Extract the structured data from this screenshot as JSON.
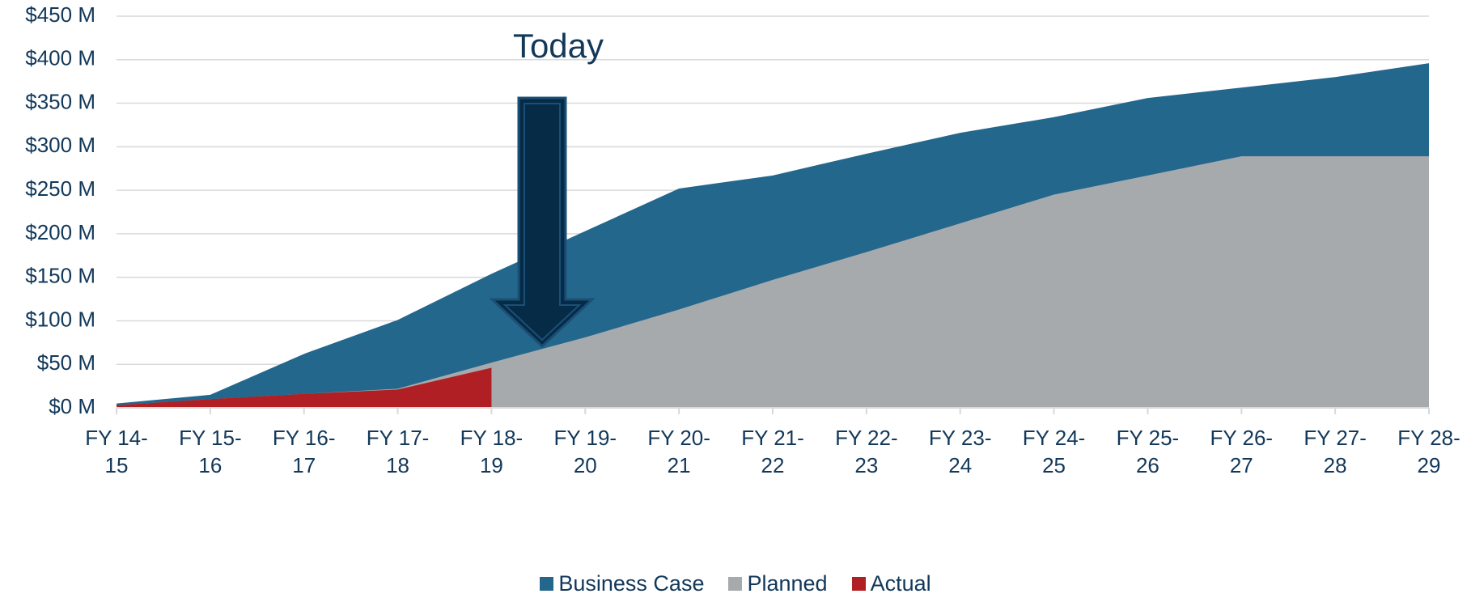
{
  "chart_data": {
    "type": "area",
    "categories": [
      "FY 14-15",
      "FY 15-16",
      "FY 16-17",
      "FY 17-18",
      "FY 18-19",
      "FY 19-20",
      "FY 20-21",
      "FY 21-22",
      "FY 22-23",
      "FY 23-24",
      "FY 24-25",
      "FY 25-26",
      "FY 26-27",
      "FY 27-28",
      "FY 28-29"
    ],
    "series": [
      {
        "name": "Business Case",
        "color": "#24678d",
        "values": [
          5,
          15,
          62,
          101,
          154,
          203,
          252,
          267,
          292,
          316,
          334,
          356,
          368,
          380,
          396
        ]
      },
      {
        "name": "Planned",
        "color": "#a7aaad",
        "values": [
          3,
          10,
          16,
          22,
          52,
          81,
          113,
          147,
          179,
          212,
          245,
          267,
          289,
          289,
          289
        ]
      },
      {
        "name": "Actual",
        "color": "#b01f24",
        "values": [
          3,
          10,
          16,
          21,
          46,
          null,
          null,
          null,
          null,
          null,
          null,
          null,
          null,
          null,
          null
        ]
      }
    ],
    "ylim": [
      0,
      450
    ],
    "yticks": [
      {
        "value": 0,
        "label": "$0 M"
      },
      {
        "value": 50,
        "label": "$50 M"
      },
      {
        "value": 100,
        "label": "$100 M"
      },
      {
        "value": 150,
        "label": "$150 M"
      },
      {
        "value": 200,
        "label": "$200 M"
      },
      {
        "value": 250,
        "label": "$250 M"
      },
      {
        "value": 300,
        "label": "$300 M"
      },
      {
        "value": 350,
        "label": "$350 M"
      },
      {
        "value": 400,
        "label": "$400 M"
      },
      {
        "value": 450,
        "label": "$450 M"
      }
    ],
    "grid": true,
    "annotations": [
      {
        "text": "Today"
      }
    ]
  }
}
